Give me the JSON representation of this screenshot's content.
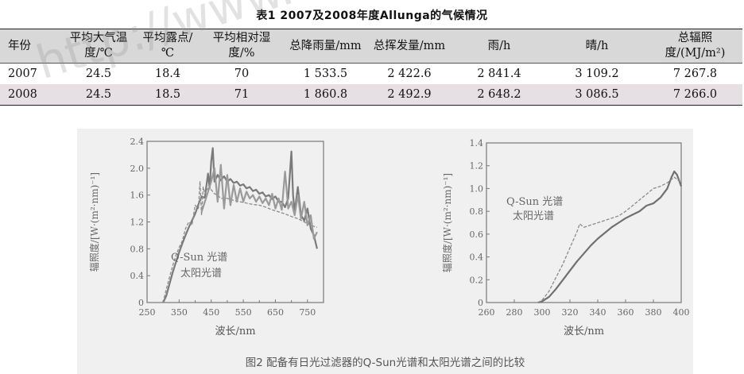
{
  "table": {
    "title": "表1 2007及2008年度Allunga的气候情况",
    "headers": [
      "年份",
      "平均大气温度/℃",
      "平均露点/℃",
      "平均相对湿度/%",
      "总降雨量/mm",
      "总挥发量/mm",
      "雨/h",
      "晴/h",
      "总辐照度/(MJ/m²)"
    ],
    "rows": [
      [
        "2007",
        "24.5",
        "18.4",
        "70",
        "1 533.5",
        "2 422.6",
        "2 841.4",
        "3 109.2",
        "7 267.8"
      ],
      [
        "2008",
        "24.5",
        "18.5",
        "71",
        "1 860.8",
        "2 492.9",
        "2 648.2",
        "3 086.5",
        "7 266.0"
      ]
    ]
  },
  "watermark": "http://www.",
  "figure": {
    "caption": "图2 配备有日光过滤器的Q-Sun光谱和太阳光谱之间的比较"
  },
  "chart_data": [
    {
      "type": "line",
      "xlabel": "波长/nm",
      "ylabel": "辐照度/[W·(m²·nm)⁻¹]",
      "xlim": [
        250,
        800
      ],
      "ylim": [
        0,
        2.4
      ],
      "xticks": [
        250,
        350,
        450,
        550,
        650,
        750
      ],
      "xtick_labels": [
        "250",
        "350",
        "450",
        "550",
        "650",
        "750"
      ],
      "xticks_minor": [
        300,
        400,
        500,
        600,
        700,
        800
      ],
      "yticks": [
        0,
        0.4,
        0.8,
        1.2,
        1.6,
        2.0,
        2.4
      ],
      "ytick_labels": [
        "0",
        "0.4",
        "0.8",
        "1.2",
        "1.6",
        "2.0",
        "2.4"
      ],
      "annotations": [
        "Q-Sun 光谱",
        "太阳光谱"
      ],
      "series": [
        {
          "color": "#7a7a7a",
          "style": "solid",
          "x": [
            300,
            310,
            320,
            330,
            340,
            350,
            360,
            370,
            380,
            390,
            400,
            410,
            420,
            430,
            440,
            445,
            450,
            455,
            460,
            470,
            480,
            490,
            500,
            510,
            520,
            530,
            540,
            550,
            560,
            570,
            580,
            590,
            600,
            610,
            620,
            630,
            640,
            650,
            660,
            670,
            680,
            690,
            700,
            705,
            710,
            720,
            730,
            740,
            750,
            760,
            770,
            780
          ],
          "y": [
            0,
            0.1,
            0.28,
            0.45,
            0.6,
            0.75,
            0.88,
            1.0,
            1.12,
            1.22,
            1.32,
            1.46,
            1.58,
            1.56,
            1.92,
            1.7,
            2.1,
            2.3,
            1.8,
            1.9,
            1.82,
            1.88,
            1.8,
            1.84,
            1.78,
            1.8,
            1.74,
            1.76,
            1.7,
            1.72,
            1.66,
            1.68,
            1.62,
            1.64,
            1.58,
            1.6,
            1.54,
            1.58,
            1.5,
            1.5,
            1.42,
            1.55,
            2.25,
            1.6,
            1.35,
            1.72,
            1.3,
            1.22,
            1.4,
            1.1,
            1.0,
            0.8
          ]
        },
        {
          "color": "#8a8a8a",
          "style": "dashed",
          "x": [
            300,
            310,
            320,
            330,
            340,
            350,
            360,
            370,
            380,
            390,
            400,
            410,
            415,
            420,
            425,
            430,
            440,
            450,
            460,
            470,
            480,
            500,
            520,
            540,
            560,
            580,
            600,
            620,
            640,
            660,
            680,
            700,
            720,
            740,
            760,
            780
          ],
          "y": [
            0,
            0.2,
            0.38,
            0.55,
            0.7,
            0.82,
            0.92,
            1.1,
            1.2,
            1.15,
            1.45,
            1.4,
            1.8,
            1.3,
            1.72,
            1.62,
            1.7,
            1.68,
            1.62,
            1.6,
            1.55,
            1.55,
            1.52,
            1.5,
            1.48,
            1.46,
            1.45,
            1.42,
            1.38,
            1.35,
            1.32,
            1.28,
            1.25,
            1.2,
            1.15,
            1.12
          ]
        },
        {
          "color": "#9a9a9a",
          "style": "solid",
          "x": [
            420,
            430,
            440,
            450,
            460,
            470,
            480,
            490,
            500,
            510,
            520,
            530,
            540,
            550,
            560,
            570,
            580,
            590,
            600,
            610,
            620,
            630,
            640,
            650,
            660,
            670,
            680,
            690,
            700,
            710,
            720,
            730,
            740,
            750,
            760,
            770,
            780
          ],
          "y": [
            1.35,
            1.5,
            1.65,
            1.8,
            2.0,
            1.5,
            2.05,
            1.4,
            1.9,
            1.45,
            1.75,
            1.5,
            1.7,
            1.5,
            1.65,
            1.55,
            1.6,
            1.5,
            1.58,
            1.48,
            1.55,
            1.45,
            1.62,
            1.4,
            1.55,
            1.38,
            1.95,
            1.4,
            1.5,
            1.3,
            1.6,
            1.25,
            1.5,
            1.15,
            1.3,
            0.95,
            1.05
          ]
        }
      ]
    },
    {
      "type": "line",
      "xlabel": "波长/nm",
      "ylabel": "辐照度/[W·(m²·nm)⁻¹]",
      "xlim": [
        260,
        400
      ],
      "ylim": [
        0,
        1.4
      ],
      "xticks": [
        260,
        280,
        300,
        320,
        340,
        360,
        380,
        400
      ],
      "xtick_labels": [
        "260",
        "280",
        "300",
        "320",
        "340",
        "360",
        "380",
        "400"
      ],
      "yticks": [
        0,
        0.2,
        0.4,
        0.6,
        0.8,
        1.0,
        1.2,
        1.4
      ],
      "ytick_labels": [
        "0",
        "0.2",
        "0.4",
        "0.6",
        "0.8",
        "1.0",
        "1.2",
        "1.4"
      ],
      "annotations": [
        "Q-Sun 光谱",
        "太阳光谱"
      ],
      "series": [
        {
          "color": "#707070",
          "style": "solid",
          "x": [
            297,
            300,
            305,
            310,
            315,
            320,
            325,
            330,
            335,
            340,
            345,
            350,
            355,
            360,
            365,
            370,
            375,
            380,
            385,
            390,
            393,
            395,
            397,
            400
          ],
          "y": [
            0,
            0.01,
            0.05,
            0.12,
            0.2,
            0.28,
            0.36,
            0.43,
            0.5,
            0.56,
            0.61,
            0.66,
            0.7,
            0.74,
            0.77,
            0.8,
            0.85,
            0.87,
            0.92,
            1.0,
            1.1,
            1.15,
            1.12,
            1.02
          ]
        },
        {
          "color": "#8a8a8a",
          "style": "dashed",
          "x": [
            297,
            300,
            305,
            310,
            315,
            320,
            325,
            327,
            330,
            335,
            340,
            345,
            350,
            355,
            360,
            365,
            370,
            375,
            380,
            385,
            390,
            395,
            400
          ],
          "y": [
            0,
            0.02,
            0.1,
            0.22,
            0.34,
            0.48,
            0.62,
            0.69,
            0.66,
            0.68,
            0.7,
            0.72,
            0.74,
            0.76,
            0.8,
            0.85,
            0.9,
            0.95,
            1.0,
            1.02,
            1.05,
            1.1,
            1.05
          ]
        }
      ]
    }
  ]
}
